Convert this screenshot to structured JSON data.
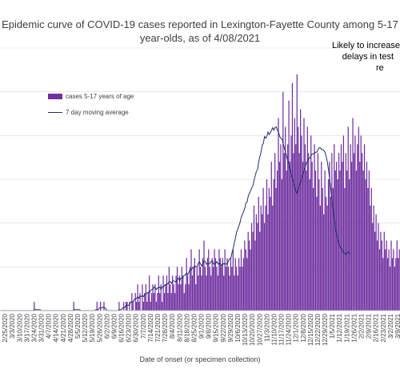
{
  "chart_data": {
    "type": "bar",
    "title_lines": [
      "Epidemic curve of COVID-19 cases reported in Lexington-Fayette County among 5-17",
      "year-olds, as of 4/08/2021"
    ],
    "annotation_lines": [
      "Likely to increase",
      "delays in test",
      "re"
    ],
    "xlabel": "Date of onset (or specimen collection)",
    "ylabel": "",
    "legend": {
      "position": "top-left",
      "bar_label": "cases 5-17 years of age",
      "line_label": "7 day moving average"
    },
    "grid": "horizontal",
    "ylim": [
      0,
      30
    ],
    "x_tick_labels": [
      "2/25/2020",
      "3/3/2020",
      "3/10/2020",
      "3/17/2020",
      "3/24/2020",
      "3/31/2020",
      "4/7/2020",
      "4/14/2020",
      "4/21/2020",
      "4/28/2020",
      "5/5/2020",
      "5/12/2020",
      "5/19/2020",
      "5/26/2020",
      "6/2/2020",
      "6/9/2020",
      "6/16/2020",
      "6/23/2020",
      "6/30/2020",
      "7/7/2020",
      "7/14/2020",
      "7/21/2020",
      "7/28/2020",
      "8/4/2020",
      "8/11/2020",
      "8/18/2020",
      "8/25/2020",
      "9/1/2020",
      "9/8/2020",
      "9/15/2020",
      "9/22/2020",
      "9/29/2020",
      "10/6/2020",
      "10/13/2020",
      "10/20/2020",
      "10/27/2020",
      "11/3/2020",
      "11/10/2020",
      "11/17/2020",
      "11/24/2020",
      "12/1/2020",
      "12/8/2020",
      "12/15/2020",
      "12/22/2020",
      "12/29/2020",
      "1/5/2021",
      "1/12/2021",
      "1/19/2021",
      "1/26/2021",
      "2/2/2021",
      "2/9/2021",
      "2/16/2021",
      "2/23/2021",
      "3/2/2021",
      "3/9/2021"
    ],
    "series": [
      {
        "name": "cases 5-17 years of age",
        "type": "bar",
        "values": [
          0,
          0,
          0,
          0,
          0,
          0,
          0,
          0,
          0,
          0,
          0,
          0,
          0,
          0,
          0,
          0,
          0,
          0,
          0,
          0,
          0,
          0,
          0,
          0,
          0,
          0,
          0,
          0,
          0,
          1,
          0,
          0,
          0,
          0,
          0,
          0,
          0,
          0,
          0,
          0,
          0,
          0,
          0,
          0,
          0,
          0,
          0,
          0,
          0,
          0,
          0,
          0,
          0,
          0,
          0,
          0,
          0,
          0,
          0,
          0,
          0,
          0,
          0,
          1,
          0,
          0,
          0,
          0,
          0,
          0,
          0,
          0,
          0,
          0,
          0,
          0,
          0,
          0,
          0,
          0,
          0,
          0,
          0,
          1,
          0,
          0,
          1,
          0,
          0,
          1,
          0,
          0,
          0,
          0,
          0,
          0,
          0,
          0,
          0,
          0,
          0,
          0,
          1,
          0,
          0,
          0,
          1,
          0,
          1,
          1,
          0,
          1,
          0,
          2,
          1,
          0,
          2,
          1,
          3,
          1,
          2,
          0,
          3,
          1,
          2,
          3,
          1,
          2,
          4,
          1,
          2,
          3,
          2,
          3,
          1,
          2,
          4,
          2,
          3,
          1,
          4,
          2,
          3,
          4,
          2,
          5,
          3,
          2,
          4,
          3,
          2,
          4,
          5,
          3,
          4,
          3,
          5,
          4,
          2,
          3,
          6,
          4,
          3,
          5,
          7,
          4,
          5,
          6,
          3,
          5,
          4,
          7,
          5,
          4,
          6,
          8,
          5,
          4,
          6,
          7,
          5,
          4,
          6,
          5,
          7,
          6,
          5,
          4,
          7,
          6,
          5,
          6,
          4,
          7,
          5,
          6,
          5,
          4,
          6,
          5,
          7,
          4,
          6,
          5,
          4,
          6,
          5,
          7,
          5,
          6,
          8,
          7,
          6,
          9,
          8,
          7,
          10,
          9,
          12,
          8,
          11,
          10,
          13,
          9,
          12,
          11,
          14,
          10,
          12,
          15,
          11,
          14,
          13,
          17,
          12,
          15,
          18,
          14,
          16,
          22,
          17,
          19,
          15,
          25,
          18,
          21,
          16,
          19,
          24,
          17,
          20,
          26,
          18,
          22,
          19,
          27,
          21,
          18,
          23,
          20,
          17,
          22,
          19,
          16,
          21,
          18,
          15,
          20,
          17,
          14,
          19,
          16,
          13,
          18,
          15,
          12,
          17,
          14,
          11,
          16,
          13,
          12,
          15,
          17,
          13,
          18,
          14,
          19,
          16,
          17,
          15,
          18,
          16,
          19,
          17,
          20,
          14,
          18,
          16,
          21,
          15,
          19,
          17,
          22,
          18,
          20,
          16,
          19,
          21,
          17,
          20,
          18,
          16,
          19,
          15,
          17,
          14,
          16,
          12,
          14,
          10,
          12,
          9,
          11,
          8,
          10,
          7,
          9,
          8,
          6,
          9,
          7,
          8,
          6,
          7,
          5,
          8,
          6,
          7,
          5,
          6,
          8,
          6,
          7
        ]
      },
      {
        "name": "7 day moving average",
        "type": "line",
        "values": [
          0,
          0,
          0,
          0,
          0,
          0,
          0,
          0,
          0,
          0,
          0,
          0,
          0,
          0,
          0,
          0,
          0,
          0,
          0,
          0,
          0,
          0,
          0,
          0,
          0,
          0,
          0,
          0,
          0,
          0.1,
          0.1,
          0.1,
          0.1,
          0.1,
          0.1,
          0,
          0,
          0,
          0,
          0,
          0,
          0,
          0,
          0,
          0,
          0,
          0,
          0,
          0,
          0,
          0,
          0,
          0,
          0,
          0,
          0,
          0,
          0,
          0,
          0,
          0,
          0,
          0,
          0.1,
          0.1,
          0.1,
          0.1,
          0.1,
          0.1,
          0,
          0,
          0,
          0,
          0,
          0,
          0,
          0,
          0,
          0,
          0,
          0,
          0,
          0.1,
          0.1,
          0.1,
          0.3,
          0.3,
          0.3,
          0.4,
          0.3,
          0.3,
          0.1,
          0,
          0,
          0,
          0,
          0,
          0,
          0,
          0,
          0,
          0,
          0.1,
          0.1,
          0.1,
          0.3,
          0.3,
          0.4,
          0.6,
          0.6,
          0.6,
          0.7,
          1,
          1,
          1,
          1.3,
          1.3,
          1.4,
          1.6,
          1.4,
          1.7,
          1.6,
          1.7,
          1.6,
          1.9,
          1.9,
          2,
          2.1,
          2,
          2.3,
          2.4,
          2.4,
          2.7,
          2.6,
          2.4,
          2.6,
          2.6,
          2.7,
          2.4,
          2.7,
          2.7,
          2.9,
          3,
          3,
          3.1,
          3.3,
          3.3,
          3.1,
          3.4,
          3.4,
          3.3,
          3.3,
          3.6,
          3.7,
          3.4,
          3.7,
          3.7,
          3.9,
          4,
          4.1,
          4.3,
          4.1,
          4.4,
          4.7,
          4.6,
          4.9,
          4.9,
          5.1,
          5,
          5,
          5.4,
          5.6,
          5.3,
          5.1,
          5.4,
          5.7,
          5.6,
          5.3,
          5.4,
          5.3,
          5.4,
          5.6,
          5.7,
          5.3,
          5.3,
          5.4,
          5.6,
          5.3,
          5.4,
          5.4,
          5.1,
          5.4,
          5.3,
          5.4,
          5.3,
          5.3,
          5.7,
          5.9,
          6,
          6.6,
          7.1,
          7.7,
          8.3,
          9,
          9.3,
          9.7,
          10.1,
          10.7,
          11,
          11.3,
          11.7,
          12.3,
          12.4,
          13.1,
          13.4,
          13.7,
          14,
          14.3,
          14.9,
          15.4,
          15.9,
          16.1,
          17,
          17.6,
          18.1,
          18.9,
          19.1,
          19.9,
          19.7,
          19.9,
          20.4,
          20.1,
          20.3,
          20.6,
          20.9,
          20.6,
          20.9,
          21,
          20.6,
          20.4,
          19.9,
          19.7,
          19.6,
          19.1,
          18.6,
          18.1,
          17.6,
          17.1,
          16.6,
          16.1,
          15.6,
          15.1,
          14.6,
          14.1,
          13.6,
          13.4,
          13.9,
          14.3,
          14.7,
          15.1,
          15.6,
          16,
          16.4,
          16.9,
          17.1,
          17.4,
          17.4,
          17.7,
          17.9,
          17.9,
          18,
          18.1,
          18.1,
          18.4,
          18.6,
          18.6,
          18.4,
          18.4,
          18.3,
          18.1,
          17.6,
          17,
          16.1,
          15.1,
          13.9,
          12.6,
          11.6,
          10.4,
          9.4,
          8.7,
          8.1,
          7.6,
          7.3,
          7.1,
          6.9,
          6.6,
          6.6,
          6.4,
          6.6,
          6.7,
          6.6,
          6.4
        ]
      }
    ],
    "colors": {
      "bars": "#7030a0",
      "line": "#1f2f6a",
      "grid": "#d9d9d9",
      "text": "#404040"
    }
  }
}
